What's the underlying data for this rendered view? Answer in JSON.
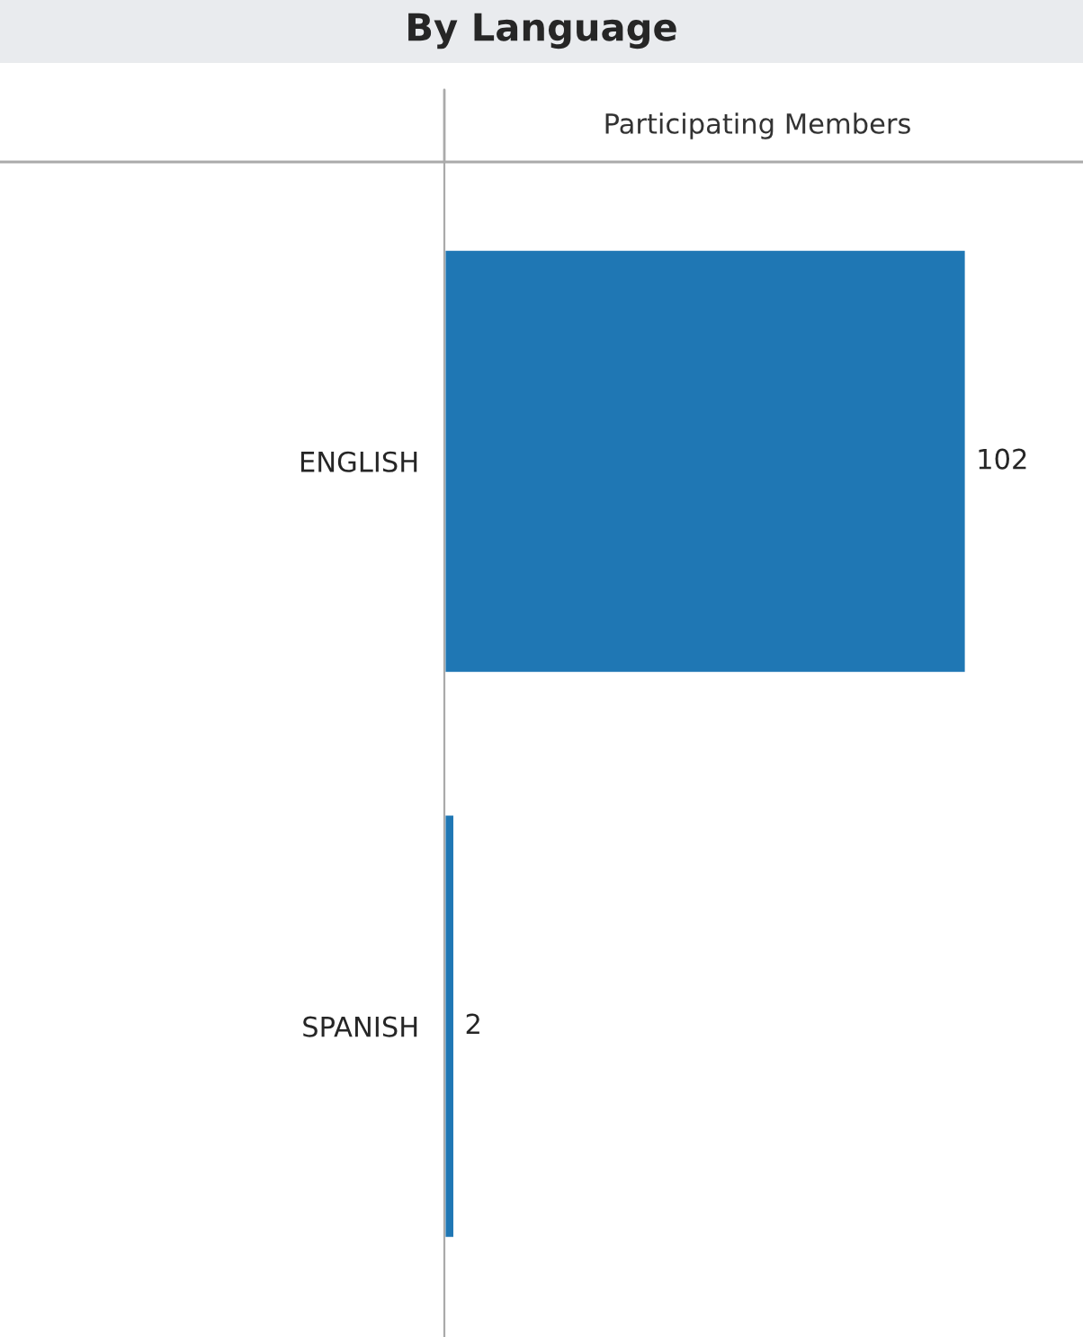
{
  "chart_data": {
    "type": "bar",
    "orientation": "horizontal",
    "title": "By Language",
    "xlabel": "Participating Members",
    "categories": [
      "ENGLISH",
      "SPANISH"
    ],
    "values": [
      102,
      2
    ],
    "color": "#1f77b4",
    "data_labels": true,
    "tick_labels": "y",
    "grid": false,
    "legend": false
  }
}
